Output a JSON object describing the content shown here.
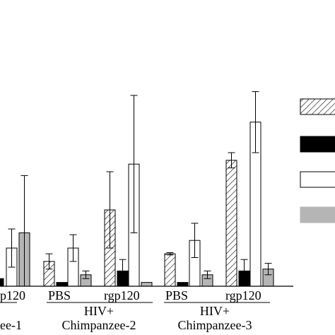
{
  "chart_data": {
    "type": "bar",
    "title": "",
    "xlabel": "",
    "ylabel": "",
    "treatments": [
      "PBS",
      "rgp120"
    ],
    "series": [
      {
        "pattern": "hatched",
        "color": "#ffffff"
      },
      {
        "pattern": "solid",
        "color": "#000000"
      },
      {
        "pattern": "open",
        "color": "#ffffff"
      },
      {
        "pattern": "solid",
        "color": "#b5b5b5"
      }
    ],
    "legend": {
      "position": "right",
      "labels": [
        "",
        "",
        "",
        ""
      ]
    },
    "groups": [
      {
        "label_line1": "",
        "label_line2": "ee-1",
        "treatment_labels": [
          "",
          "p120"
        ],
        "bars": [
          {
            "series": 1,
            "value": 0.2,
            "err": 0
          },
          {
            "series": 2,
            "value": 1.0,
            "err": 0.5
          },
          {
            "series": 3,
            "value": 1.4,
            "err": 1.5
          }
        ]
      },
      {
        "label_line1": "HIV+",
        "label_line2": "Chimpanzee-2",
        "treatment_labels": [
          "PBS",
          "rgp120"
        ],
        "bars": [
          {
            "series": 0,
            "value": 0.65,
            "err": 0.2
          },
          {
            "series": 1,
            "value": 0.1,
            "err": 0
          },
          {
            "series": 2,
            "value": 1.0,
            "err": 0.35
          },
          {
            "series": 3,
            "value": 0.3,
            "err": 0.1
          },
          {
            "series": 0,
            "value": 2.0,
            "err": 1.0
          },
          {
            "series": 1,
            "value": 0.4,
            "err": 0.3
          },
          {
            "series": 2,
            "value": 3.2,
            "err": 1.8
          },
          {
            "series": 3,
            "value": 0.1,
            "err": 0
          }
        ]
      },
      {
        "label_line1": "HIV+",
        "label_line2": "Chimpanzee-3",
        "treatment_labels": [
          "PBS",
          "rgp120"
        ],
        "bars": [
          {
            "series": 0,
            "value": 0.85,
            "err": 0.03
          },
          {
            "series": 1,
            "value": 0.1,
            "err": 0
          },
          {
            "series": 2,
            "value": 1.2,
            "err": 0.45
          },
          {
            "series": 3,
            "value": 0.3,
            "err": 0.1
          },
          {
            "series": 0,
            "value": 3.3,
            "err": 0.2
          },
          {
            "series": 1,
            "value": 0.4,
            "err": 0.3
          },
          {
            "series": 2,
            "value": 4.3,
            "err": 0.8
          },
          {
            "series": 3,
            "value": 0.45,
            "err": 0.15
          }
        ]
      }
    ]
  }
}
